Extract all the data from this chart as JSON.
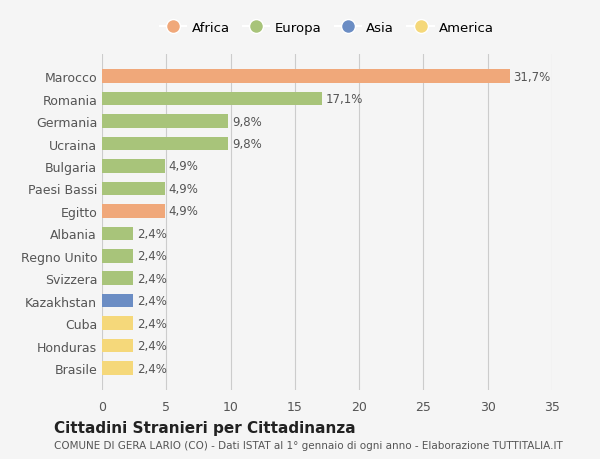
{
  "categories": [
    "Brasile",
    "Honduras",
    "Cuba",
    "Kazakhstan",
    "Svizzera",
    "Regno Unito",
    "Albania",
    "Egitto",
    "Paesi Bassi",
    "Bulgaria",
    "Ucraina",
    "Germania",
    "Romania",
    "Marocco"
  ],
  "values": [
    2.4,
    2.4,
    2.4,
    2.4,
    2.4,
    2.4,
    2.4,
    4.9,
    4.9,
    4.9,
    9.8,
    9.8,
    17.1,
    31.7
  ],
  "labels": [
    "2,4%",
    "2,4%",
    "2,4%",
    "2,4%",
    "2,4%",
    "2,4%",
    "2,4%",
    "4,9%",
    "4,9%",
    "4,9%",
    "9,8%",
    "9,8%",
    "17,1%",
    "31,7%"
  ],
  "colors": [
    "#f5d87a",
    "#f5d87a",
    "#f5d87a",
    "#6b8dc4",
    "#a8c47a",
    "#a8c47a",
    "#a8c47a",
    "#f0a87a",
    "#a8c47a",
    "#a8c47a",
    "#a8c47a",
    "#a8c47a",
    "#a8c47a",
    "#f0a87a"
  ],
  "legend_labels": [
    "Africa",
    "Europa",
    "Asia",
    "America"
  ],
  "legend_colors": [
    "#f0a87a",
    "#a8c47a",
    "#6b8dc4",
    "#f5d87a"
  ],
  "title": "Cittadini Stranieri per Cittadinanza",
  "subtitle": "COMUNE DI GERA LARIO (CO) - Dati ISTAT al 1° gennaio di ogni anno - Elaborazione TUTTITALIA.IT",
  "xlim": [
    0,
    35
  ],
  "xticks": [
    0,
    5,
    10,
    15,
    20,
    25,
    30,
    35
  ],
  "bg_color": "#f5f5f5",
  "grid_color": "#cccccc",
  "text_color": "#555555",
  "title_color": "#222222",
  "subtitle_color": "#555555"
}
